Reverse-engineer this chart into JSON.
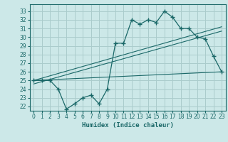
{
  "xlabel": "Humidex (Indice chaleur)",
  "bg_color": "#cce8e8",
  "grid_color": "#aacccc",
  "line_color": "#1a6868",
  "x_ticks": [
    0,
    1,
    2,
    3,
    4,
    5,
    6,
    7,
    8,
    9,
    10,
    11,
    12,
    13,
    14,
    15,
    16,
    17,
    18,
    19,
    20,
    21,
    22,
    23
  ],
  "y_ticks": [
    22,
    23,
    24,
    25,
    26,
    27,
    28,
    29,
    30,
    31,
    32,
    33
  ],
  "ylim": [
    21.5,
    33.8
  ],
  "xlim": [
    -0.5,
    23.5
  ],
  "curve1_x": [
    0,
    1,
    2,
    3,
    4,
    5,
    6,
    7,
    8,
    9,
    10,
    11,
    12,
    13,
    14,
    15,
    16,
    17,
    18,
    19,
    20,
    21,
    22,
    23
  ],
  "curve1_y": [
    25,
    25,
    25,
    24,
    21.7,
    22.3,
    23,
    23.3,
    22.3,
    24,
    29.3,
    29.3,
    32,
    31.5,
    32,
    31.7,
    33,
    32.3,
    31,
    31,
    30,
    29.8,
    27.8,
    26
  ],
  "line1_x": [
    0,
    23
  ],
  "line1_y": [
    25.0,
    26.0
  ],
  "line2_x": [
    0,
    23
  ],
  "line2_y": [
    25.0,
    31.2
  ],
  "line3_x": [
    0,
    23
  ],
  "line3_y": [
    24.6,
    30.7
  ]
}
